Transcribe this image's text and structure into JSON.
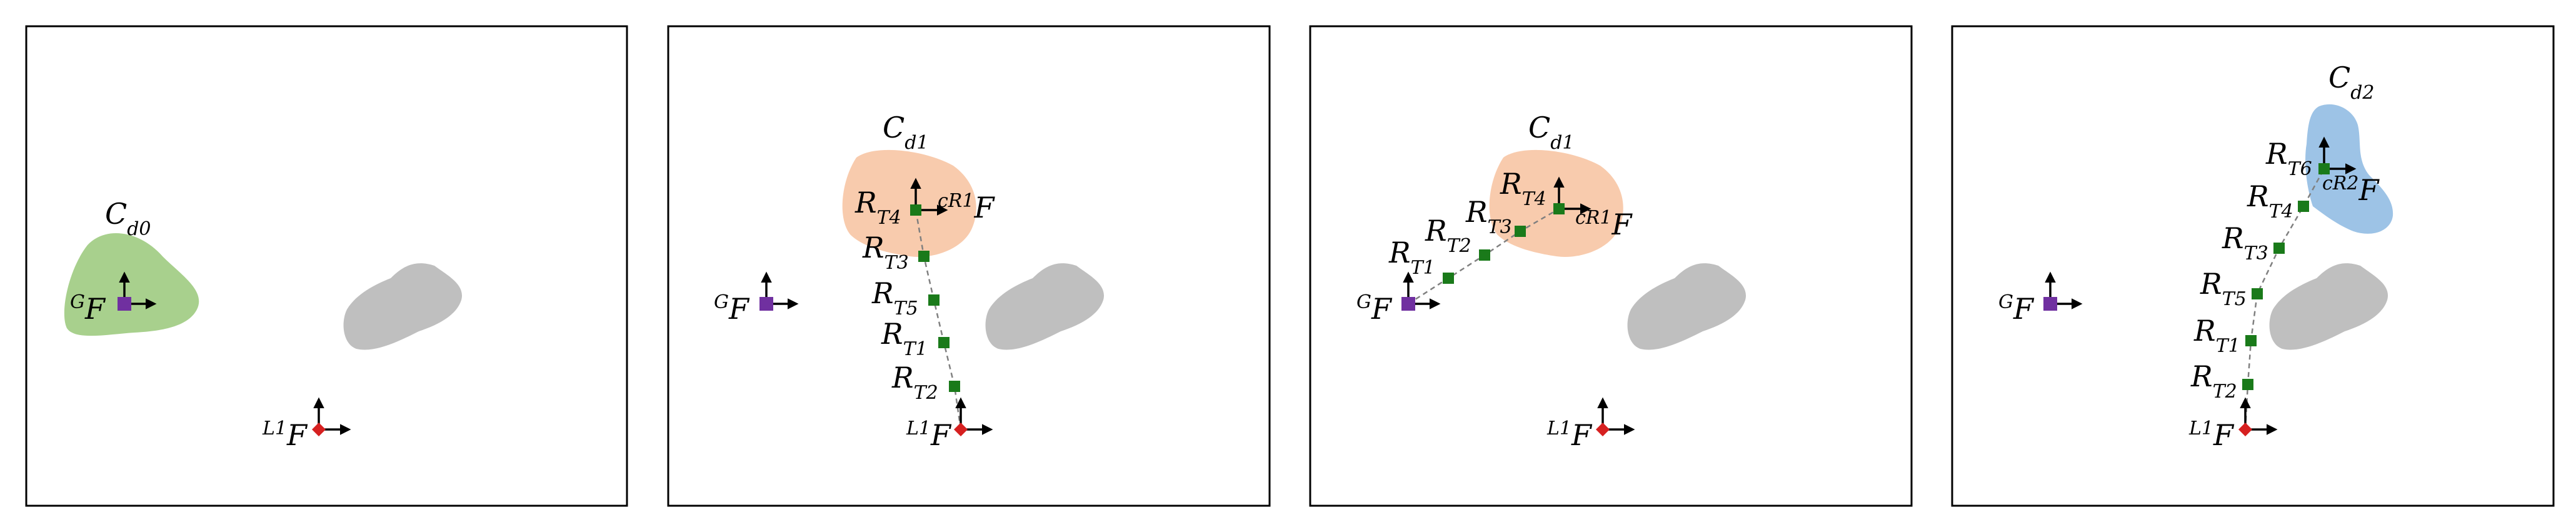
{
  "colors": {
    "panel_border": "#000000",
    "blob_green": "#a8d08d",
    "blob_orange": "#f8cbad",
    "blob_blue": "#9dc3e6",
    "obstacle_gray": "#bfbfbf",
    "goal_marker": "#7030a0",
    "robot_marker": "#d62020",
    "relay_marker": "#1a7a1a",
    "path_line": "#808080"
  },
  "icons": {
    "goal_marker": "purple-square",
    "robot_marker": "red-diamond",
    "relay_marker": "green-square",
    "frame_axes": "right-and-up-arrows"
  },
  "panels": [
    {
      "id": "panel-1",
      "cloud_label": {
        "base": "C",
        "sub": "d0"
      },
      "goal_frame": {
        "sup": "G",
        "base": "F"
      },
      "robot_frame": {
        "sup": "L1",
        "base": "F"
      },
      "relays": [],
      "comm_frame": null
    },
    {
      "id": "panel-2",
      "cloud_label": {
        "base": "C",
        "sub": "d1"
      },
      "goal_frame": {
        "sup": "G",
        "base": "F"
      },
      "robot_frame": {
        "sup": "L1",
        "base": "F"
      },
      "relays": [
        {
          "base": "R",
          "sub": "T4"
        },
        {
          "base": "R",
          "sub": "T3"
        },
        {
          "base": "R",
          "sub": "T5"
        },
        {
          "base": "R",
          "sub": "T1"
        },
        {
          "base": "R",
          "sub": "T2"
        }
      ],
      "comm_frame": {
        "sup": "cR1",
        "base": "F"
      }
    },
    {
      "id": "panel-3",
      "cloud_label": {
        "base": "C",
        "sub": "d1"
      },
      "goal_frame": {
        "sup": "G",
        "base": "F"
      },
      "robot_frame": {
        "sup": "L1",
        "base": "F"
      },
      "relays": [
        {
          "base": "R",
          "sub": "T1"
        },
        {
          "base": "R",
          "sub": "T2"
        },
        {
          "base": "R",
          "sub": "T3"
        },
        {
          "base": "R",
          "sub": "T4"
        }
      ],
      "comm_frame": {
        "sup": "cR1",
        "base": "F"
      }
    },
    {
      "id": "panel-4",
      "cloud_label": {
        "base": "C",
        "sub": "d2"
      },
      "goal_frame": {
        "sup": "G",
        "base": "F"
      },
      "robot_frame": {
        "sup": "L1",
        "base": "F"
      },
      "relays": [
        {
          "base": "R",
          "sub": "T6"
        },
        {
          "base": "R",
          "sub": "T4"
        },
        {
          "base": "R",
          "sub": "T3"
        },
        {
          "base": "R",
          "sub": "T5"
        },
        {
          "base": "R",
          "sub": "T1"
        },
        {
          "base": "R",
          "sub": "T2"
        }
      ],
      "comm_frame": {
        "sup": "cR2",
        "base": "F"
      }
    }
  ]
}
